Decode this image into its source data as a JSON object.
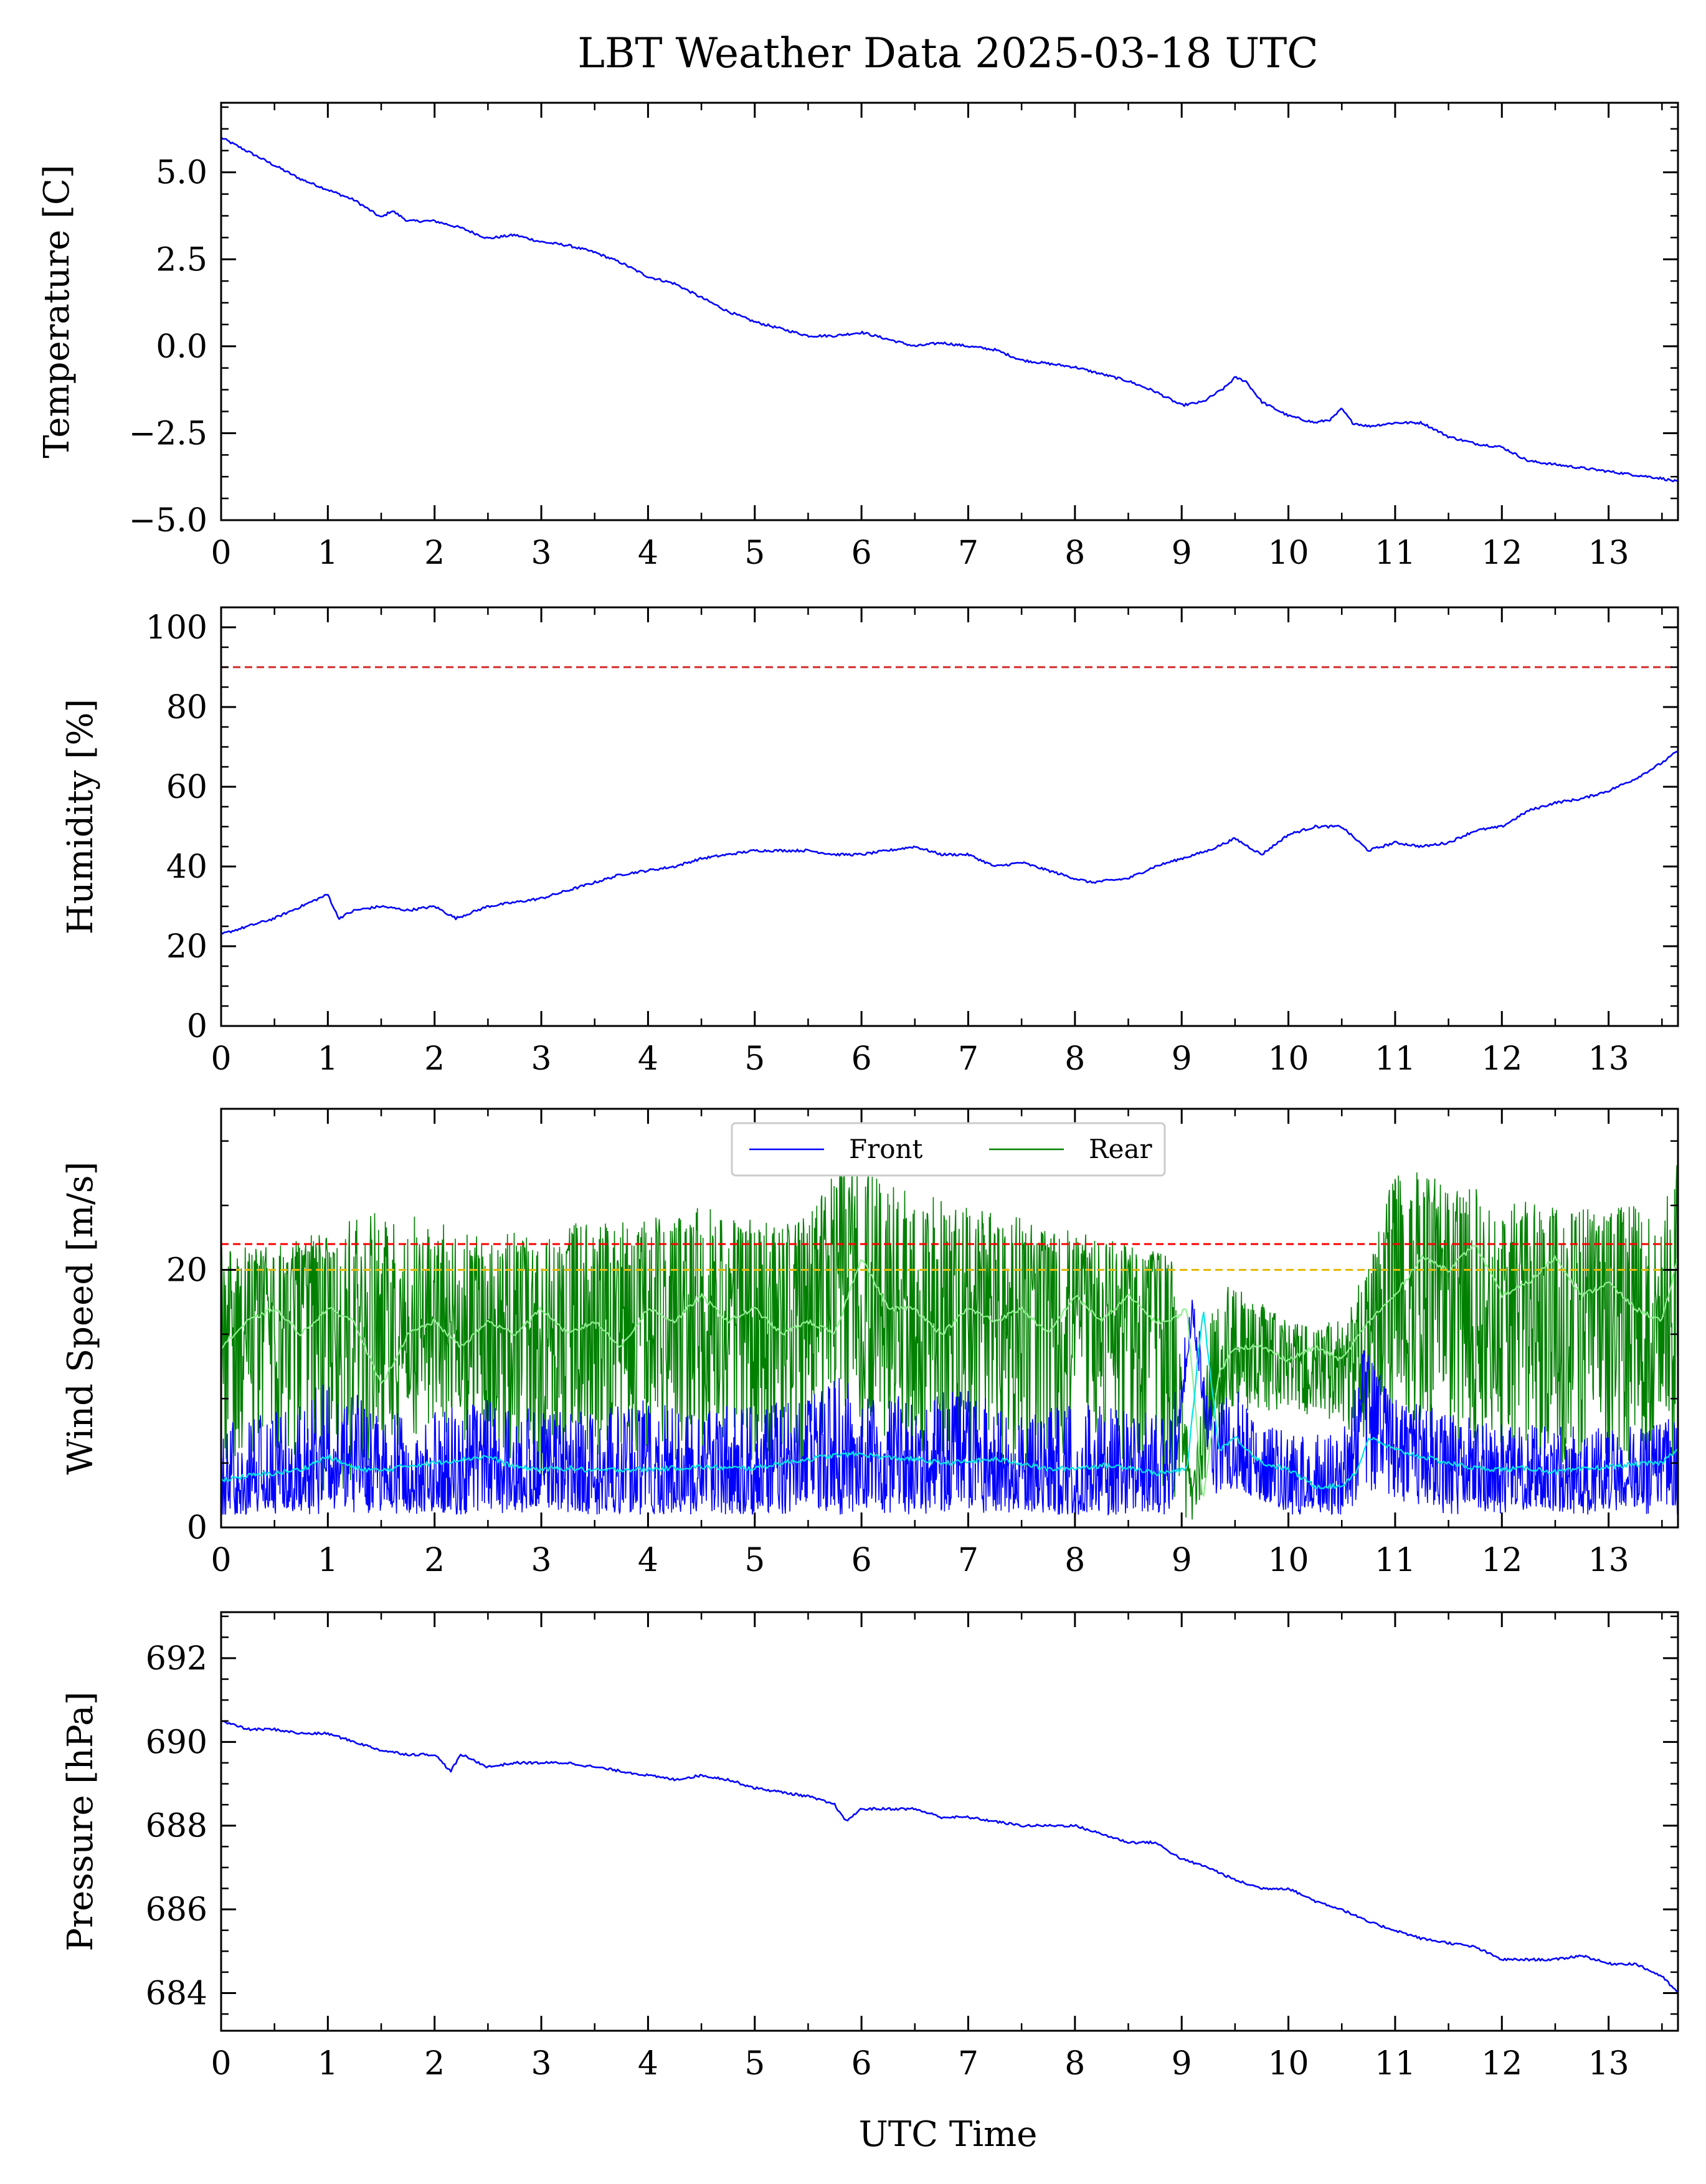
{
  "figure": {
    "title": "LBT Weather Data 2025-03-18 UTC",
    "xlabel": "UTC Time"
  },
  "chart_data": [
    {
      "id": "temperature",
      "type": "line",
      "ylabel": "Temperature [C]",
      "xlim": [
        0,
        13.65
      ],
      "ylim": [
        -5.0,
        7.0
      ],
      "yticks": [
        5.0,
        2.5,
        0.0,
        -2.5,
        -5.0
      ],
      "ytick_labels": [
        "5.0",
        "2.5",
        "0.0",
        "−2.5",
        "−5.0"
      ],
      "xticks": [
        0,
        1,
        2,
        3,
        4,
        5,
        6,
        7,
        8,
        9,
        10,
        11,
        12,
        13
      ],
      "xtick_labels": [
        "0",
        "1",
        "2",
        "3",
        "4",
        "5",
        "6",
        "7",
        "8",
        "9",
        "10",
        "11",
        "12",
        "13"
      ],
      "grid": false,
      "thresholds": [],
      "series": [
        {
          "color": "#0000ff",
          "x": [
            0,
            0.25,
            0.5,
            0.75,
            1.0,
            1.25,
            1.5,
            1.6,
            1.75,
            2.0,
            2.25,
            2.5,
            2.75,
            3.0,
            3.25,
            3.5,
            3.75,
            4.0,
            4.25,
            4.5,
            4.75,
            5.0,
            5.25,
            5.5,
            5.75,
            6.0,
            6.25,
            6.5,
            6.75,
            7.0,
            7.25,
            7.5,
            7.75,
            8.0,
            8.25,
            8.5,
            8.75,
            9.0,
            9.2,
            9.4,
            9.5,
            9.6,
            9.75,
            10.0,
            10.25,
            10.4,
            10.5,
            10.6,
            10.75,
            11.0,
            11.25,
            11.5,
            11.75,
            12.0,
            12.25,
            12.5,
            12.75,
            13.0,
            13.25,
            13.5,
            13.65
          ],
          "y": [
            6.0,
            5.6,
            5.2,
            4.8,
            4.5,
            4.2,
            3.7,
            3.9,
            3.6,
            3.6,
            3.4,
            3.1,
            3.2,
            3.0,
            2.9,
            2.7,
            2.4,
            2.0,
            1.8,
            1.4,
            1.0,
            0.7,
            0.5,
            0.3,
            0.3,
            0.4,
            0.2,
            0.0,
            0.1,
            0.0,
            -0.1,
            -0.4,
            -0.5,
            -0.6,
            -0.8,
            -1.0,
            -1.3,
            -1.7,
            -1.6,
            -1.2,
            -0.9,
            -1.0,
            -1.6,
            -2.0,
            -2.2,
            -2.1,
            -1.8,
            -2.2,
            -2.3,
            -2.2,
            -2.2,
            -2.6,
            -2.8,
            -2.9,
            -3.3,
            -3.4,
            -3.5,
            -3.6,
            -3.7,
            -3.8,
            -3.9
          ]
        }
      ]
    },
    {
      "id": "humidity",
      "type": "line",
      "ylabel": "Humidity [%]",
      "xlim": [
        0,
        13.65
      ],
      "ylim": [
        0,
        105
      ],
      "yticks": [
        0,
        20,
        40,
        60,
        80,
        100
      ],
      "ytick_labels": [
        "0",
        "20",
        "40",
        "60",
        "80",
        "100"
      ],
      "xticks": [
        0,
        1,
        2,
        3,
        4,
        5,
        6,
        7,
        8,
        9,
        10,
        11,
        12,
        13
      ],
      "xtick_labels": [
        "0",
        "1",
        "2",
        "3",
        "4",
        "5",
        "6",
        "7",
        "8",
        "9",
        "10",
        "11",
        "12",
        "13"
      ],
      "grid": false,
      "thresholds": [
        {
          "y": 90,
          "color": "#d62728"
        }
      ],
      "series": [
        {
          "color": "#0000ff",
          "x": [
            0,
            0.25,
            0.5,
            0.75,
            1.0,
            1.1,
            1.25,
            1.5,
            1.75,
            2.0,
            2.2,
            2.5,
            2.75,
            3.0,
            3.25,
            3.5,
            3.75,
            4.0,
            4.25,
            4.5,
            4.75,
            5.0,
            5.25,
            5.5,
            5.75,
            6.0,
            6.25,
            6.5,
            6.75,
            7.0,
            7.25,
            7.5,
            7.75,
            8.0,
            8.15,
            8.5,
            8.75,
            9.0,
            9.25,
            9.5,
            9.75,
            10.0,
            10.25,
            10.5,
            10.75,
            11.0,
            11.25,
            11.5,
            11.75,
            12.0,
            12.25,
            12.5,
            12.75,
            13.0,
            13.25,
            13.5,
            13.65
          ],
          "y": [
            23,
            25,
            27,
            30,
            33,
            27,
            29,
            30,
            29,
            30,
            27,
            30,
            31,
            32,
            34,
            36,
            38,
            39,
            40,
            42,
            43,
            44,
            44,
            44,
            43,
            43,
            44,
            45,
            43,
            43,
            40,
            41,
            39,
            37,
            36,
            37,
            40,
            42,
            44,
            47,
            43,
            48,
            50,
            50,
            44,
            46,
            45,
            46,
            49,
            50,
            54,
            56,
            57,
            59,
            62,
            66,
            69
          ]
        }
      ]
    },
    {
      "id": "wind",
      "type": "line",
      "ylabel": "Wind Speed [m/s]",
      "xlim": [
        0,
        13.65
      ],
      "ylim": [
        0,
        32.5
      ],
      "yticks": [
        0,
        20
      ],
      "ytick_labels": [
        "0",
        "20"
      ],
      "xticks": [
        0,
        1,
        2,
        3,
        4,
        5,
        6,
        7,
        8,
        9,
        10,
        11,
        12,
        13
      ],
      "xtick_labels": [
        "0",
        "1",
        "2",
        "3",
        "4",
        "5",
        "6",
        "7",
        "8",
        "9",
        "10",
        "11",
        "12",
        "13"
      ],
      "grid": false,
      "legend": {
        "placement": "upper center",
        "entries": [
          "Front",
          "Rear"
        ]
      },
      "thresholds": [
        {
          "y": 22,
          "color": "#ff0000"
        },
        {
          "y": 20,
          "color": "#e6b800"
        }
      ],
      "series": [
        {
          "name": "Rear",
          "color": "#008000",
          "x": [
            0,
            0.5,
            1.0,
            1.5,
            2.0,
            2.5,
            3.0,
            3.5,
            4.0,
            4.5,
            5.0,
            5.5,
            5.8,
            6.0,
            6.5,
            7.0,
            7.5,
            8.0,
            8.5,
            8.9,
            9.1,
            9.3,
            9.5,
            10.0,
            10.5,
            10.8,
            11.0,
            11.5,
            12.0,
            12.5,
            13.0,
            13.5,
            13.65
          ],
          "y_mean": [
            14,
            16,
            15,
            14,
            16,
            15,
            16,
            15,
            17,
            16,
            17,
            16,
            21,
            18,
            17,
            17,
            16,
            17,
            16,
            16,
            2,
            12,
            14,
            13,
            13,
            15,
            18,
            19,
            17,
            17,
            17,
            16,
            18
          ],
          "y_low": [
            3,
            6,
            2,
            5,
            7,
            4,
            3,
            5,
            6,
            4,
            5,
            4,
            10,
            7,
            6,
            5,
            4,
            6,
            5,
            2,
            0,
            6,
            9,
            9,
            8,
            6,
            9,
            4,
            6,
            5,
            4,
            6,
            2
          ],
          "y_high": [
            22,
            22,
            23,
            25,
            24,
            23,
            23,
            24,
            24,
            25,
            24,
            24,
            29,
            28,
            26,
            25,
            24,
            23,
            22,
            21,
            3,
            18,
            19,
            16,
            16,
            22,
            28,
            27,
            26,
            25,
            25,
            26,
            29
          ]
        },
        {
          "name": "Front",
          "color": "#0000ff",
          "x": [
            0,
            0.5,
            1.0,
            1.5,
            2.0,
            2.5,
            3.0,
            3.5,
            4.0,
            4.5,
            5.0,
            5.5,
            5.8,
            6.0,
            6.5,
            7.0,
            7.5,
            8.0,
            8.5,
            8.9,
            9.1,
            9.3,
            9.5,
            9.7,
            10.0,
            10.5,
            10.7,
            11.0,
            11.5,
            12.0,
            12.5,
            13.0,
            13.5,
            13.65
          ],
          "y_mean": [
            3,
            4,
            5,
            4,
            4,
            4,
            4,
            4,
            4,
            4,
            4,
            5,
            5,
            5,
            5,
            5,
            4,
            4,
            4,
            4,
            17,
            5,
            7,
            4,
            4,
            3,
            12,
            6,
            5,
            4,
            4,
            4,
            4,
            5
          ],
          "y_low": [
            1,
            1,
            1,
            1,
            1,
            1,
            1,
            1,
            1,
            1,
            1,
            1,
            1,
            1,
            1,
            1,
            1,
            1,
            1,
            1,
            16,
            2,
            3,
            2,
            1,
            1,
            2,
            2,
            1,
            1,
            1,
            1,
            1,
            1
          ],
          "y_high": [
            8,
            9,
            12,
            9,
            9,
            10,
            9,
            9,
            10,
            9,
            10,
            10,
            12,
            11,
            10,
            11,
            9,
            10,
            9,
            9,
            19,
            9,
            11,
            8,
            8,
            7,
            14,
            10,
            9,
            8,
            8,
            8,
            8,
            9
          ]
        },
        {
          "color": "#90ee90",
          "x": [
            0,
            0.25,
            0.5,
            0.75,
            1.0,
            1.25,
            1.5,
            1.75,
            2.0,
            2.25,
            2.5,
            2.75,
            3.0,
            3.25,
            3.5,
            3.75,
            4.0,
            4.25,
            4.5,
            4.75,
            5.0,
            5.25,
            5.5,
            5.75,
            6.0,
            6.25,
            6.5,
            6.75,
            7.0,
            7.25,
            7.5,
            7.75,
            8.0,
            8.25,
            8.5,
            8.75,
            8.9,
            9.05,
            9.2,
            9.35,
            9.5,
            9.75,
            10.0,
            10.25,
            10.5,
            10.75,
            11.0,
            11.25,
            11.5,
            11.75,
            12.0,
            12.25,
            12.5,
            12.75,
            13.0,
            13.25,
            13.5,
            13.65
          ],
          "y": [
            14,
            16,
            17,
            15,
            17,
            16,
            11,
            15,
            16,
            14,
            16,
            15,
            17,
            15,
            16,
            14,
            17,
            16,
            18,
            16,
            17,
            15,
            16,
            15,
            21,
            17,
            17,
            15,
            17,
            16,
            17,
            15,
            18,
            16,
            18,
            16,
            16,
            17,
            2,
            12,
            14,
            14,
            13,
            14,
            13,
            16,
            18,
            21,
            20,
            22,
            18,
            19,
            21,
            18,
            19,
            17,
            16,
            21
          ]
        },
        {
          "color": "#00e5e5",
          "x": [
            0,
            0.25,
            0.5,
            0.75,
            1.0,
            1.25,
            1.5,
            1.75,
            2.0,
            2.25,
            2.5,
            2.75,
            3.0,
            3.25,
            3.5,
            3.75,
            4.0,
            4.25,
            4.5,
            4.75,
            5.0,
            5.25,
            5.5,
            5.75,
            6.0,
            6.25,
            6.5,
            6.75,
            7.0,
            7.25,
            7.5,
            7.75,
            8.0,
            8.25,
            8.5,
            8.75,
            8.9,
            9.05,
            9.2,
            9.35,
            9.5,
            9.75,
            10.0,
            10.25,
            10.5,
            10.65,
            10.75,
            11.0,
            11.25,
            11.5,
            11.75,
            12.0,
            12.25,
            12.5,
            12.75,
            13.0,
            13.25,
            13.5,
            13.65
          ],
          "y": [
            3.7,
            4.0,
            4.2,
            4.5,
            5.5,
            4.6,
            4.4,
            4.8,
            5.0,
            5.3,
            5.5,
            4.7,
            4.5,
            4.6,
            4.4,
            4.5,
            4.5,
            4.6,
            4.7,
            4.6,
            4.6,
            5.0,
            5.3,
            5.6,
            5.7,
            5.4,
            5.3,
            5.0,
            5.1,
            5.3,
            5.0,
            4.5,
            4.6,
            4.8,
            4.7,
            4.2,
            4.3,
            4.5,
            17,
            6,
            7,
            5,
            4.5,
            3.2,
            3.2,
            4.5,
            7,
            6,
            5.5,
            5,
            4.6,
            4.5,
            4.6,
            4.3,
            4.5,
            4.7,
            4.9,
            5.0,
            6.2
          ]
        }
      ]
    },
    {
      "id": "pressure",
      "type": "line",
      "ylabel": "Pressure [hPa]",
      "xlim": [
        0,
        13.65
      ],
      "ylim": [
        683.1,
        693.1
      ],
      "yticks": [
        684,
        686,
        688,
        690,
        692
      ],
      "ytick_labels": [
        "684",
        "686",
        "688",
        "690",
        "692"
      ],
      "xticks": [
        0,
        1,
        2,
        3,
        4,
        5,
        6,
        7,
        8,
        9,
        10,
        11,
        12,
        13
      ],
      "xtick_labels": [
        "0",
        "1",
        "2",
        "3",
        "4",
        "5",
        "6",
        "7",
        "8",
        "9",
        "10",
        "11",
        "12",
        "13"
      ],
      "grid": false,
      "thresholds": [],
      "series": [
        {
          "color": "#0000ff",
          "x": [
            0,
            0.25,
            0.5,
            0.75,
            1.0,
            1.25,
            1.5,
            1.75,
            2.0,
            2.15,
            2.25,
            2.5,
            2.75,
            3.0,
            3.25,
            3.5,
            3.75,
            4.0,
            4.25,
            4.5,
            4.75,
            5.0,
            5.25,
            5.5,
            5.75,
            5.85,
            6.0,
            6.25,
            6.5,
            6.75,
            7.0,
            7.25,
            7.5,
            7.75,
            8.0,
            8.25,
            8.5,
            8.75,
            9.0,
            9.25,
            9.5,
            9.75,
            10.0,
            10.25,
            10.5,
            10.75,
            11.0,
            11.25,
            11.5,
            11.75,
            12.0,
            12.25,
            12.5,
            12.75,
            13.0,
            13.25,
            13.5,
            13.65
          ],
          "y": [
            690.5,
            690.3,
            690.3,
            690.2,
            690.2,
            690.0,
            689.8,
            689.7,
            689.7,
            689.3,
            689.7,
            689.4,
            689.5,
            689.5,
            689.5,
            689.4,
            689.3,
            689.2,
            689.1,
            689.2,
            689.1,
            688.9,
            688.8,
            688.7,
            688.5,
            688.1,
            688.4,
            688.4,
            688.4,
            688.2,
            688.2,
            688.1,
            688.0,
            688.0,
            688.0,
            687.8,
            687.6,
            687.6,
            687.2,
            687.0,
            686.7,
            686.5,
            686.5,
            686.2,
            686.0,
            685.7,
            685.5,
            685.3,
            685.2,
            685.1,
            684.8,
            684.8,
            684.8,
            684.9,
            684.7,
            684.7,
            684.4,
            684.0
          ]
        }
      ]
    }
  ]
}
